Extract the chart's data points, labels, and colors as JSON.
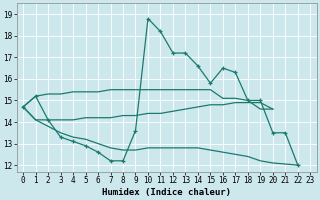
{
  "xlabel": "Humidex (Indice chaleur)",
  "bg_color": "#cde8ed",
  "grid_color": "#b0d8de",
  "line_color": "#1a7a6e",
  "xlim": [
    -0.5,
    23.5
  ],
  "ylim": [
    11.7,
    19.5
  ],
  "xticks": [
    0,
    1,
    2,
    3,
    4,
    5,
    6,
    7,
    8,
    9,
    10,
    11,
    12,
    13,
    14,
    15,
    16,
    17,
    18,
    19,
    20,
    21,
    22,
    23
  ],
  "yticks": [
    12,
    13,
    14,
    15,
    16,
    17,
    18,
    19
  ],
  "lines": [
    {
      "x": [
        0,
        1,
        2,
        3,
        4,
        5,
        6,
        7,
        8,
        9,
        10,
        11,
        12,
        13,
        14,
        15,
        16,
        17,
        18,
        19,
        20,
        21,
        22
      ],
      "y": [
        14.7,
        15.2,
        14.1,
        13.3,
        13.1,
        12.9,
        12.6,
        12.2,
        12.2,
        13.6,
        18.8,
        18.2,
        17.2,
        17.2,
        16.6,
        15.8,
        16.5,
        16.3,
        15.0,
        15.0,
        13.5,
        13.5,
        12.0
      ],
      "marker": true
    },
    {
      "x": [
        0,
        1,
        2,
        3,
        4,
        5,
        6,
        7,
        8,
        9,
        10,
        11,
        12,
        13,
        14,
        15,
        16,
        17,
        18,
        19,
        20
      ],
      "y": [
        14.7,
        15.2,
        15.3,
        15.3,
        15.4,
        15.4,
        15.4,
        15.5,
        15.5,
        15.5,
        15.5,
        15.5,
        15.5,
        15.5,
        15.5,
        15.5,
        15.1,
        15.1,
        15.0,
        14.6,
        14.6
      ],
      "marker": false
    },
    {
      "x": [
        0,
        1,
        2,
        3,
        4,
        5,
        6,
        7,
        8,
        9,
        10,
        11,
        12,
        13,
        14,
        15,
        16,
        17,
        18,
        19,
        20
      ],
      "y": [
        14.7,
        14.1,
        14.1,
        14.1,
        14.1,
        14.2,
        14.2,
        14.2,
        14.3,
        14.3,
        14.4,
        14.4,
        14.5,
        14.6,
        14.7,
        14.8,
        14.8,
        14.9,
        14.9,
        14.9,
        14.6
      ],
      "marker": false
    },
    {
      "x": [
        0,
        1,
        2,
        3,
        4,
        5,
        6,
        7,
        8,
        9,
        10,
        11,
        12,
        13,
        14,
        15,
        16,
        17,
        18,
        19,
        20,
        22
      ],
      "y": [
        14.7,
        14.1,
        13.8,
        13.5,
        13.3,
        13.2,
        13.0,
        12.8,
        12.7,
        12.7,
        12.8,
        12.8,
        12.8,
        12.8,
        12.8,
        12.7,
        12.6,
        12.5,
        12.4,
        12.2,
        12.1,
        12.0
      ],
      "marker": false
    }
  ]
}
